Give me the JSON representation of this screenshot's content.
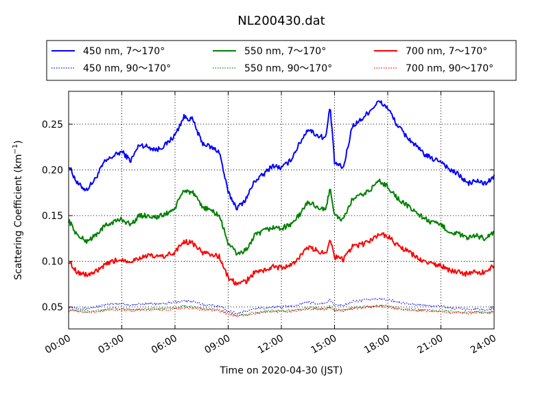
{
  "chart_data": {
    "type": "line",
    "title": "NL200430.dat",
    "xlabel": "Time on 2020-04-30 (JST)",
    "ylabel": "Scattering Coefficient (km",
    "ylabel_sup": "−1",
    "ylabel_end": ")",
    "xlim": [
      0,
      24
    ],
    "ylim": [
      0.026,
      0.286
    ],
    "grid": true,
    "legend_position": "top",
    "x_ticks": [
      0,
      3,
      6,
      9,
      12,
      15,
      18,
      21,
      24
    ],
    "x_tick_labels": [
      "00:00",
      "03:00",
      "06:00",
      "09:00",
      "12:00",
      "15:00",
      "18:00",
      "21:00",
      "24:00"
    ],
    "y_ticks": [
      0.05,
      0.1,
      0.15,
      0.2,
      0.25
    ],
    "y_tick_labels": [
      "0.05",
      "0.10",
      "0.15",
      "0.20",
      "0.25"
    ],
    "x": [
      0,
      0.5,
      1,
      1.5,
      2,
      2.5,
      3,
      3.5,
      4,
      4.5,
      5,
      5.5,
      6,
      6.5,
      7,
      7.5,
      8,
      8.5,
      9,
      9.5,
      10,
      10.5,
      11,
      11.5,
      12,
      12.5,
      13,
      13.5,
      14,
      14.5,
      14.75,
      15,
      15.5,
      16,
      16.5,
      17,
      17.5,
      18,
      18.5,
      19,
      19.5,
      20,
      20.5,
      21,
      21.5,
      22,
      22.5,
      23,
      23.5,
      24
    ],
    "series": [
      {
        "name": "450 nm, 7～170°",
        "color": "#0000ff",
        "style": "solid",
        "values": [
          0.205,
          0.185,
          0.178,
          0.19,
          0.208,
          0.215,
          0.22,
          0.21,
          0.228,
          0.225,
          0.222,
          0.228,
          0.238,
          0.258,
          0.255,
          0.23,
          0.225,
          0.22,
          0.175,
          0.158,
          0.168,
          0.188,
          0.195,
          0.205,
          0.202,
          0.21,
          0.228,
          0.245,
          0.238,
          0.235,
          0.27,
          0.208,
          0.202,
          0.248,
          0.255,
          0.265,
          0.275,
          0.268,
          0.25,
          0.238,
          0.228,
          0.218,
          0.212,
          0.21,
          0.2,
          0.195,
          0.185,
          0.188,
          0.185,
          0.192
        ]
      },
      {
        "name": "450 nm, 90～170°",
        "color": "#0000ff",
        "style": "dotted",
        "values": [
          0.05,
          0.049,
          0.048,
          0.05,
          0.052,
          0.053,
          0.054,
          0.052,
          0.053,
          0.054,
          0.053,
          0.054,
          0.055,
          0.057,
          0.056,
          0.053,
          0.052,
          0.051,
          0.046,
          0.043,
          0.045,
          0.048,
          0.049,
          0.05,
          0.05,
          0.051,
          0.053,
          0.055,
          0.054,
          0.054,
          0.058,
          0.052,
          0.052,
          0.056,
          0.057,
          0.058,
          0.059,
          0.058,
          0.056,
          0.054,
          0.053,
          0.052,
          0.051,
          0.051,
          0.049,
          0.048,
          0.047,
          0.048,
          0.047,
          0.048
        ]
      },
      {
        "name": "550 nm, 7～170°",
        "color": "#008000",
        "style": "solid",
        "values": [
          0.145,
          0.128,
          0.122,
          0.128,
          0.138,
          0.143,
          0.146,
          0.14,
          0.15,
          0.15,
          0.148,
          0.152,
          0.158,
          0.178,
          0.175,
          0.16,
          0.156,
          0.15,
          0.12,
          0.108,
          0.112,
          0.128,
          0.133,
          0.137,
          0.136,
          0.14,
          0.15,
          0.165,
          0.16,
          0.155,
          0.182,
          0.15,
          0.145,
          0.168,
          0.172,
          0.178,
          0.188,
          0.182,
          0.17,
          0.162,
          0.155,
          0.148,
          0.142,
          0.14,
          0.132,
          0.13,
          0.125,
          0.128,
          0.125,
          0.132
        ]
      },
      {
        "name": "550 nm, 90～170°",
        "color": "#008000",
        "style": "dotted",
        "values": [
          0.047,
          0.046,
          0.045,
          0.046,
          0.047,
          0.048,
          0.048,
          0.047,
          0.048,
          0.048,
          0.048,
          0.048,
          0.049,
          0.051,
          0.05,
          0.048,
          0.048,
          0.047,
          0.043,
          0.041,
          0.042,
          0.044,
          0.045,
          0.046,
          0.046,
          0.046,
          0.048,
          0.049,
          0.049,
          0.048,
          0.051,
          0.047,
          0.047,
          0.049,
          0.05,
          0.051,
          0.052,
          0.051,
          0.049,
          0.048,
          0.047,
          0.047,
          0.046,
          0.046,
          0.045,
          0.045,
          0.044,
          0.045,
          0.044,
          0.045
        ]
      },
      {
        "name": "700 nm, 7～170°",
        "color": "#ff0000",
        "style": "solid",
        "values": [
          0.1,
          0.088,
          0.085,
          0.088,
          0.095,
          0.1,
          0.102,
          0.1,
          0.104,
          0.106,
          0.105,
          0.106,
          0.11,
          0.122,
          0.12,
          0.11,
          0.108,
          0.105,
          0.082,
          0.075,
          0.078,
          0.088,
          0.09,
          0.094,
          0.093,
          0.095,
          0.104,
          0.115,
          0.112,
          0.108,
          0.126,
          0.105,
          0.102,
          0.116,
          0.118,
          0.122,
          0.13,
          0.128,
          0.118,
          0.112,
          0.106,
          0.1,
          0.097,
          0.095,
          0.09,
          0.088,
          0.086,
          0.088,
          0.088,
          0.096
        ]
      },
      {
        "name": "700 nm, 90～170°",
        "color": "#ff0000",
        "style": "dotted",
        "values": [
          0.046,
          0.045,
          0.044,
          0.045,
          0.046,
          0.047,
          0.047,
          0.046,
          0.047,
          0.047,
          0.047,
          0.047,
          0.048,
          0.049,
          0.049,
          0.047,
          0.047,
          0.046,
          0.042,
          0.04,
          0.041,
          0.043,
          0.044,
          0.045,
          0.045,
          0.045,
          0.047,
          0.048,
          0.048,
          0.047,
          0.05,
          0.046,
          0.046,
          0.048,
          0.049,
          0.05,
          0.051,
          0.05,
          0.048,
          0.047,
          0.046,
          0.046,
          0.045,
          0.045,
          0.044,
          0.044,
          0.043,
          0.044,
          0.043,
          0.044
        ]
      }
    ]
  }
}
